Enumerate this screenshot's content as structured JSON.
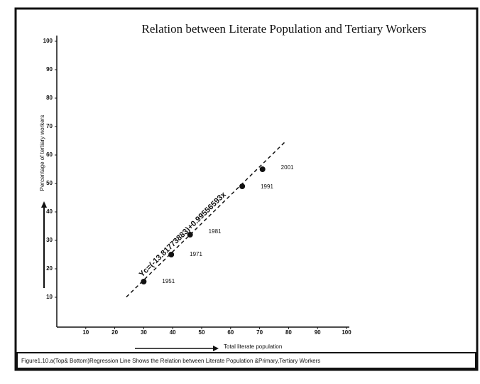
{
  "chart_data": {
    "type": "scatter",
    "title": "Relation between Literate  Population and Tertiary  Workers",
    "x_label": "Total literate population",
    "y_label": "Percentage of tertiary workers",
    "caption": "Figure1.10.a(Top& Bottom)Regression Line Shows the Relation between Literate Population &Primary,Tertiary Workers",
    "x": [
      30,
      39.5,
      46,
      64,
      71
    ],
    "series": [
      {
        "name": "Tertiary workers",
        "color": "#111111",
        "values": [
          15.5,
          25,
          32,
          49,
          55
        ]
      }
    ],
    "point_labels": [
      "1951",
      "1971",
      "1981",
      "1991",
      "2001"
    ],
    "regression": {
      "label": "Yc=(-13.81773883)+0.99556593x",
      "intercept": -13.81773883,
      "slope": 0.99556593,
      "x_range": [
        24,
        79
      ]
    },
    "xlim": [
      0,
      100
    ],
    "ylim": [
      0,
      100
    ],
    "xticks": [
      10,
      20,
      30,
      40,
      50,
      60,
      70,
      80,
      90,
      100
    ],
    "yticks": [
      10,
      20,
      30,
      40,
      50,
      60,
      70,
      80,
      90,
      100
    ]
  }
}
